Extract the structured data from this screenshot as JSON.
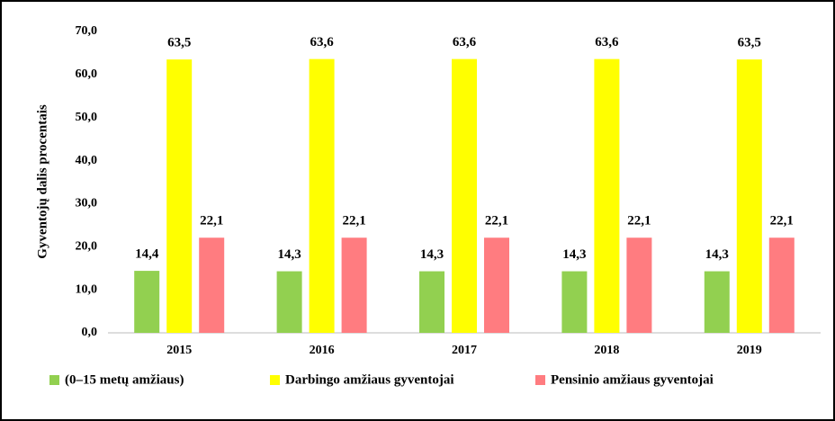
{
  "chart_data": {
    "type": "bar",
    "y_label": "Gyventojų dalis procentais",
    "categories": [
      "2015",
      "2016",
      "2017",
      "2018",
      "2019"
    ],
    "series": [
      {
        "name": "(0–15 metų amžiaus)",
        "color": "#92d050",
        "values": [
          14.4,
          14.3,
          14.3,
          14.3,
          14.3
        ],
        "value_labels": [
          "14,4",
          "14,3",
          "14,3",
          "14,3",
          "14,3"
        ]
      },
      {
        "name": "Darbingo amžiaus gyventojai",
        "color": "#ffff00",
        "values": [
          63.5,
          63.6,
          63.6,
          63.6,
          63.5
        ],
        "value_labels": [
          "63,5",
          "63,6",
          "63,6",
          "63,6",
          "63,5"
        ]
      },
      {
        "name": "Pensinio amžiaus gyventojai",
        "color": "#ff7c80",
        "values": [
          22.1,
          22.1,
          22.1,
          22.1,
          22.1
        ],
        "value_labels": [
          "22,1",
          "22,1",
          "22,1",
          "22,1",
          "22,1"
        ]
      }
    ],
    "ylim": [
      0,
      70
    ],
    "yticks": [
      {
        "value": 0,
        "label": "0,0"
      },
      {
        "value": 10,
        "label": "10,0"
      },
      {
        "value": 20,
        "label": "20,0"
      },
      {
        "value": 30,
        "label": "30,0"
      },
      {
        "value": 40,
        "label": "40,0"
      },
      {
        "value": 50,
        "label": "50,0"
      },
      {
        "value": 60,
        "label": "60,0"
      },
      {
        "value": 70,
        "label": "70,0"
      }
    ],
    "legend": "bottom"
  }
}
